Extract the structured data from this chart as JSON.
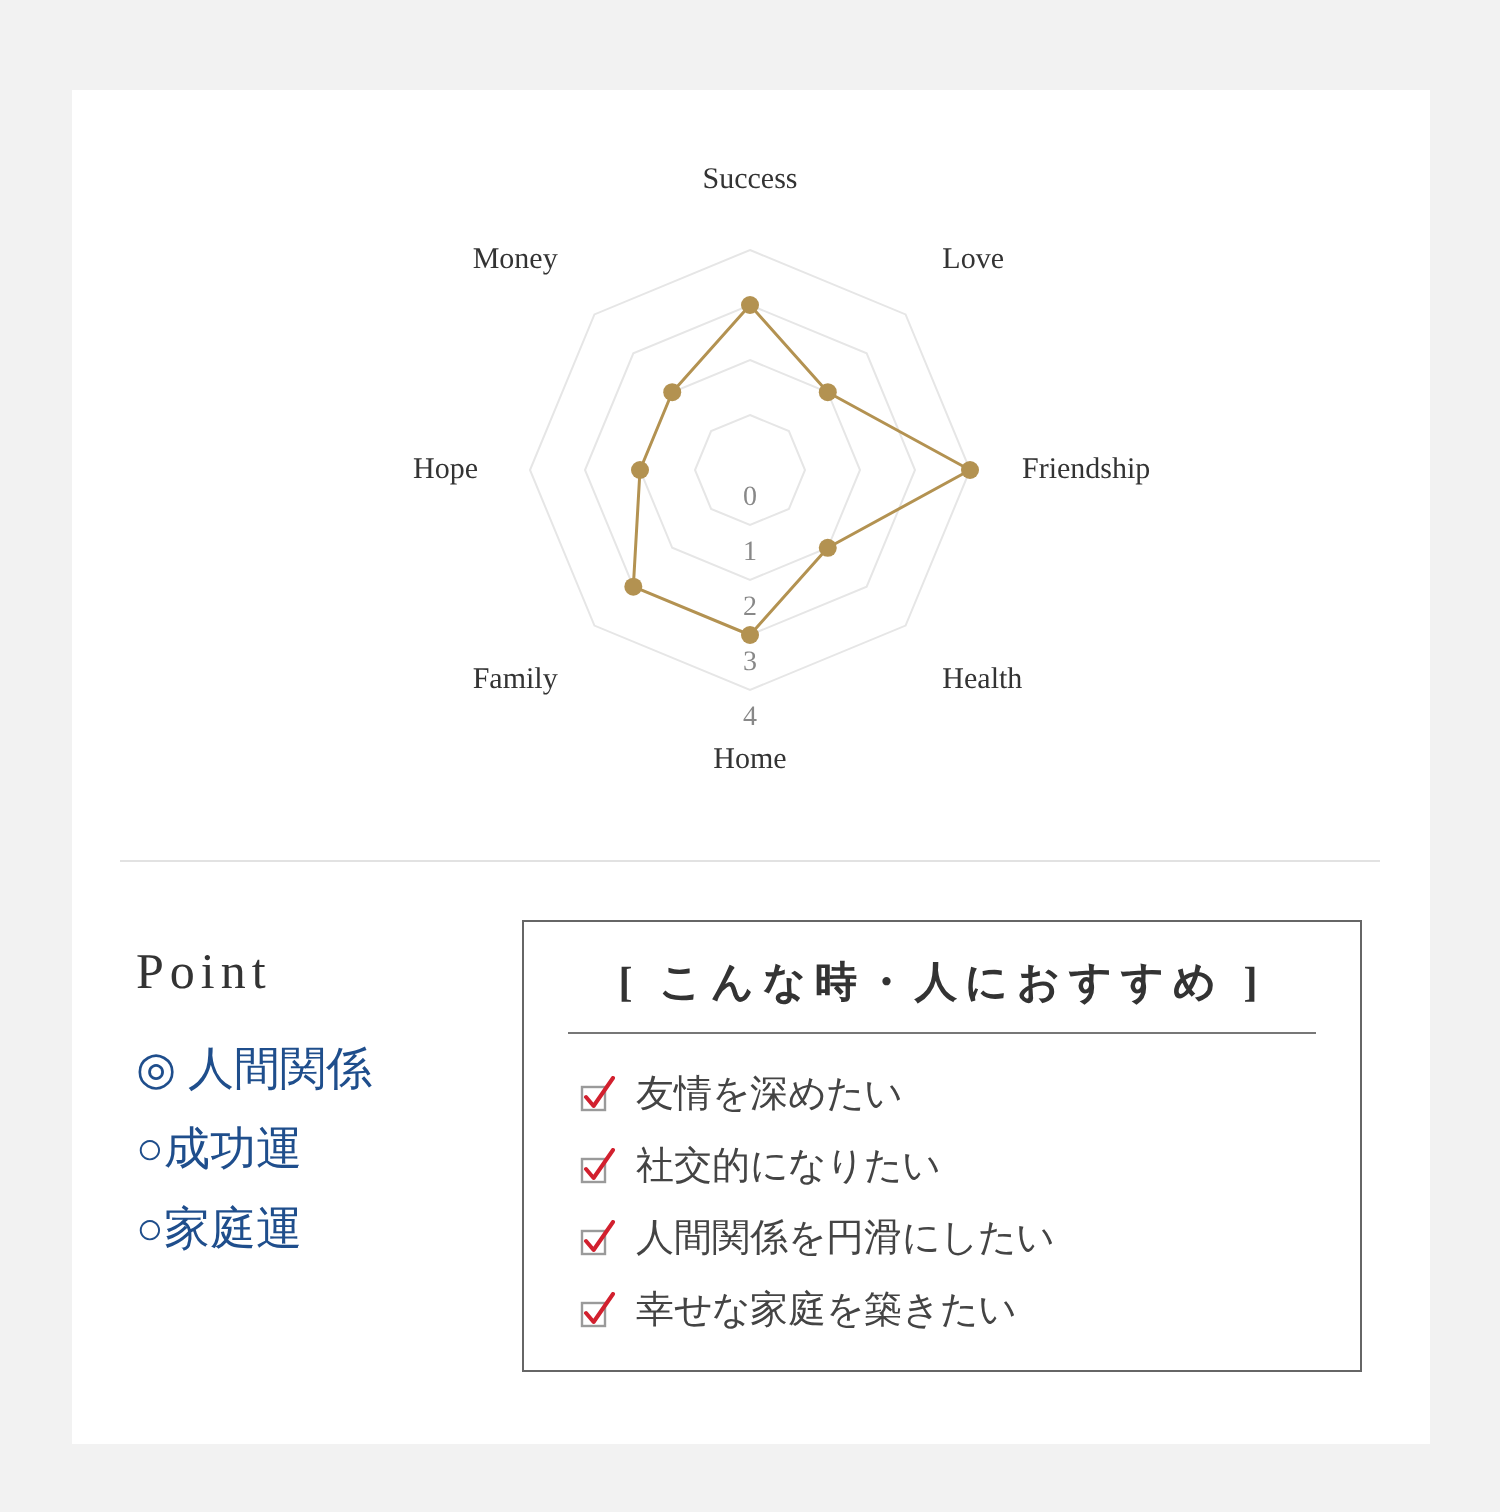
{
  "chart_data": [
    {
      "type": "radar",
      "categories": [
        "Success",
        "Love",
        "Friendship",
        "Health",
        "Home",
        "Family",
        "Hope",
        "Money"
      ],
      "series": [
        {
          "color": "#b39251",
          "values": [
            3,
            2,
            4,
            2,
            3,
            3,
            2,
            2
          ]
        }
      ],
      "ylim": [
        0,
        4
      ],
      "yticks": [
        0,
        1,
        2,
        3,
        4
      ],
      "grid": true,
      "marker": "circle"
    },
    {
      "type": "other",
      "title": "Point",
      "annotations": [
        "◎ 人間関係",
        "○成功運",
        "○家庭運"
      ]
    },
    {
      "type": "other",
      "title": "[ こんな時・人におすすめ ]",
      "annotations": [
        "友情を深めたい",
        "社交的になりたい",
        "人間関係を円滑にしたい",
        "幸せな家庭を築きたい"
      ]
    }
  ]
}
